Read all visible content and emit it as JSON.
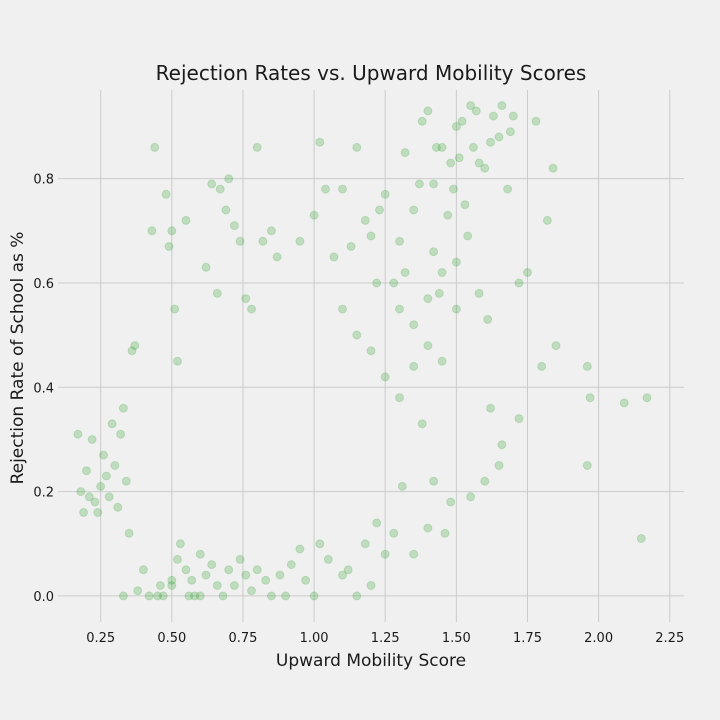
{
  "chart_data": {
    "type": "scatter",
    "title": "Rejection Rates vs. Upward Mobility Scores",
    "xlabel": "Upward Mobility Score",
    "ylabel": "Rejection Rate of School as %",
    "xlim": [
      0.1,
      2.3
    ],
    "ylim": [
      -0.05,
      0.97
    ],
    "xticks": [
      0.25,
      0.5,
      0.75,
      1.0,
      1.25,
      1.5,
      1.75,
      2.0,
      2.25
    ],
    "xtick_labels": [
      "0.25",
      "0.50",
      "0.75",
      "1.00",
      "1.25",
      "1.50",
      "1.75",
      "2.00",
      "2.25"
    ],
    "yticks": [
      0.0,
      0.2,
      0.4,
      0.6,
      0.8
    ],
    "ytick_labels": [
      "0.0",
      "0.2",
      "0.4",
      "0.6",
      "0.8"
    ],
    "grid": true,
    "marker_color": "#2ca02c",
    "marker_alpha": 0.25,
    "series": [
      {
        "points": [
          [
            0.17,
            0.31
          ],
          [
            0.18,
            0.2
          ],
          [
            0.19,
            0.16
          ],
          [
            0.2,
            0.24
          ],
          [
            0.21,
            0.19
          ],
          [
            0.22,
            0.3
          ],
          [
            0.23,
            0.18
          ],
          [
            0.24,
            0.16
          ],
          [
            0.25,
            0.21
          ],
          [
            0.26,
            0.27
          ],
          [
            0.27,
            0.23
          ],
          [
            0.28,
            0.19
          ],
          [
            0.29,
            0.33
          ],
          [
            0.3,
            0.25
          ],
          [
            0.31,
            0.17
          ],
          [
            0.32,
            0.31
          ],
          [
            0.33,
            0.0
          ],
          [
            0.33,
            0.36
          ],
          [
            0.34,
            0.22
          ],
          [
            0.35,
            0.12
          ],
          [
            0.36,
            0.47
          ],
          [
            0.37,
            0.48
          ],
          [
            0.38,
            0.01
          ],
          [
            0.4,
            0.05
          ],
          [
            0.42,
            0.0
          ],
          [
            0.43,
            0.7
          ],
          [
            0.44,
            0.86
          ],
          [
            0.45,
            0.0
          ],
          [
            0.46,
            0.02
          ],
          [
            0.47,
            0.0
          ],
          [
            0.48,
            0.77
          ],
          [
            0.49,
            0.67
          ],
          [
            0.5,
            0.7
          ],
          [
            0.5,
            0.02
          ],
          [
            0.51,
            0.55
          ],
          [
            0.52,
            0.45
          ],
          [
            0.53,
            0.1
          ],
          [
            0.55,
            0.72
          ],
          [
            0.56,
            0.0
          ],
          [
            0.58,
            0.0
          ],
          [
            0.6,
            0.0
          ],
          [
            0.62,
            0.63
          ],
          [
            0.64,
            0.79
          ],
          [
            0.66,
            0.58
          ],
          [
            0.67,
            0.78
          ],
          [
            0.69,
            0.74
          ],
          [
            0.7,
            0.8
          ],
          [
            0.72,
            0.71
          ],
          [
            0.74,
            0.68
          ],
          [
            0.76,
            0.57
          ],
          [
            0.78,
            0.55
          ],
          [
            0.8,
            0.86
          ],
          [
            0.82,
            0.68
          ],
          [
            0.85,
            0.7
          ],
          [
            0.87,
            0.65
          ],
          [
            0.9,
            0.0
          ],
          [
            0.95,
            0.68
          ],
          [
            1.0,
            0.73
          ],
          [
            1.02,
            0.87
          ],
          [
            1.04,
            0.78
          ],
          [
            1.07,
            0.65
          ],
          [
            1.1,
            0.78
          ],
          [
            1.13,
            0.67
          ],
          [
            1.15,
            0.86
          ],
          [
            1.18,
            0.72
          ],
          [
            1.2,
            0.69
          ],
          [
            1.23,
            0.74
          ],
          [
            1.25,
            0.77
          ],
          [
            1.28,
            0.6
          ],
          [
            1.3,
            0.68
          ],
          [
            1.32,
            0.85
          ],
          [
            1.35,
            0.74
          ],
          [
            1.37,
            0.79
          ],
          [
            1.38,
            0.91
          ],
          [
            1.4,
            0.93
          ],
          [
            1.42,
            0.79
          ],
          [
            1.43,
            0.86
          ],
          [
            1.44,
            0.58
          ],
          [
            1.45,
            0.86
          ],
          [
            1.47,
            0.73
          ],
          [
            1.48,
            0.83
          ],
          [
            1.49,
            0.78
          ],
          [
            1.5,
            0.9
          ],
          [
            1.51,
            0.84
          ],
          [
            1.52,
            0.91
          ],
          [
            1.53,
            0.75
          ],
          [
            1.54,
            0.69
          ],
          [
            1.55,
            0.94
          ],
          [
            1.56,
            0.86
          ],
          [
            1.57,
            0.93
          ],
          [
            1.58,
            0.83
          ],
          [
            1.6,
            0.82
          ],
          [
            1.62,
            0.87
          ],
          [
            1.63,
            0.92
          ],
          [
            1.65,
            0.88
          ],
          [
            1.66,
            0.94
          ],
          [
            1.68,
            0.78
          ],
          [
            1.69,
            0.89
          ],
          [
            1.7,
            0.92
          ],
          [
            1.72,
            0.6
          ],
          [
            1.75,
            0.62
          ],
          [
            1.78,
            0.91
          ],
          [
            1.8,
            0.44
          ],
          [
            1.82,
            0.72
          ],
          [
            1.84,
            0.82
          ],
          [
            1.85,
            0.48
          ],
          [
            1.96,
            0.44
          ],
          [
            1.97,
            0.38
          ],
          [
            1.96,
            0.25
          ],
          [
            2.09,
            0.37
          ],
          [
            2.15,
            0.11
          ],
          [
            2.17,
            0.38
          ],
          [
            1.72,
            0.34
          ],
          [
            1.65,
            0.25
          ],
          [
            1.55,
            0.19
          ],
          [
            1.62,
            0.36
          ],
          [
            1.66,
            0.29
          ],
          [
            1.6,
            0.22
          ],
          [
            1.58,
            0.58
          ],
          [
            1.61,
            0.53
          ],
          [
            1.5,
            0.55
          ],
          [
            1.48,
            0.18
          ],
          [
            1.46,
            0.12
          ],
          [
            1.42,
            0.22
          ],
          [
            1.4,
            0.13
          ],
          [
            1.38,
            0.33
          ],
          [
            1.35,
            0.08
          ],
          [
            1.31,
            0.21
          ],
          [
            1.28,
            0.12
          ],
          [
            1.25,
            0.08
          ],
          [
            1.22,
            0.14
          ],
          [
            1.2,
            0.02
          ],
          [
            1.18,
            0.1
          ],
          [
            1.15,
            0.0
          ],
          [
            1.12,
            0.05
          ],
          [
            1.1,
            0.04
          ],
          [
            1.05,
            0.07
          ],
          [
            1.02,
            0.1
          ],
          [
            1.0,
            0.0
          ],
          [
            0.97,
            0.03
          ],
          [
            0.95,
            0.09
          ],
          [
            0.92,
            0.06
          ],
          [
            0.88,
            0.04
          ],
          [
            0.85,
            0.0
          ],
          [
            0.83,
            0.03
          ],
          [
            0.8,
            0.05
          ],
          [
            0.78,
            0.01
          ],
          [
            0.76,
            0.04
          ],
          [
            0.74,
            0.07
          ],
          [
            0.72,
            0.02
          ],
          [
            0.7,
            0.05
          ],
          [
            0.68,
            0.0
          ],
          [
            0.66,
            0.02
          ],
          [
            0.64,
            0.06
          ],
          [
            0.62,
            0.04
          ],
          [
            0.6,
            0.08
          ],
          [
            0.57,
            0.03
          ],
          [
            0.55,
            0.05
          ],
          [
            0.52,
            0.07
          ],
          [
            0.5,
            0.03
          ],
          [
            1.1,
            0.55
          ],
          [
            1.15,
            0.5
          ],
          [
            1.2,
            0.47
          ],
          [
            1.25,
            0.42
          ],
          [
            1.3,
            0.38
          ],
          [
            1.35,
            0.44
          ],
          [
            1.4,
            0.48
          ],
          [
            1.45,
            0.45
          ],
          [
            1.3,
            0.55
          ],
          [
            1.35,
            0.52
          ],
          [
            1.4,
            0.57
          ],
          [
            1.45,
            0.62
          ],
          [
            1.5,
            0.64
          ],
          [
            1.42,
            0.66
          ],
          [
            1.32,
            0.62
          ],
          [
            1.22,
            0.6
          ]
        ]
      }
    ]
  }
}
